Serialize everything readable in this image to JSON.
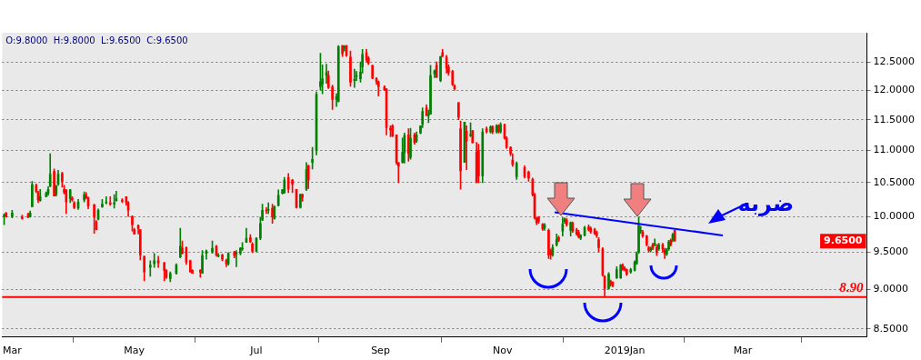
{
  "chart_data": {
    "type": "candlestick",
    "x": [
      "2018-02-25",
      "2018-02-26",
      "2018-03-01",
      "2018-03-06",
      "2018-03-09",
      "2018-03-10",
      "2018-03-11",
      "2018-03-13",
      "2018-03-14",
      "2018-03-15",
      "2018-03-18",
      "2018-03-19",
      "2018-03-20",
      "2018-03-22",
      "2018-03-23",
      "2018-03-24",
      "2018-03-26",
      "2018-03-27",
      "2018-03-28",
      "2018-03-30",
      "2018-03-31",
      "2018-04-01",
      "2018-04-03",
      "2018-04-06",
      "2018-04-07",
      "2018-04-08",
      "2018-04-11",
      "2018-04-12",
      "2018-04-13",
      "2018-04-15",
      "2018-04-17",
      "2018-04-19",
      "2018-04-21",
      "2018-04-22",
      "2018-04-25",
      "2018-04-27",
      "2018-04-28",
      "2018-04-30",
      "2018-05-01",
      "2018-05-03",
      "2018-05-04",
      "2018-05-06",
      "2018-05-09",
      "2018-05-11",
      "2018-05-13",
      "2018-05-16",
      "2018-05-17",
      "2018-05-19",
      "2018-05-22",
      "2018-05-24",
      "2018-05-25",
      "2018-05-27",
      "2018-05-29",
      "2018-05-30",
      "2018-06-03",
      "2018-06-04",
      "2018-06-06",
      "2018-06-09",
      "2018-06-11",
      "2018-06-12",
      "2018-06-14",
      "2018-06-16",
      "2018-06-17",
      "2018-06-20",
      "2018-06-21",
      "2018-06-23",
      "2018-06-24",
      "2018-06-26",
      "2018-06-28",
      "2018-06-29",
      "2018-07-01",
      "2018-07-03",
      "2018-07-04",
      "2018-07-06",
      "2018-07-07",
      "2018-07-09",
      "2018-07-10",
      "2018-07-12",
      "2018-07-14",
      "2018-07-15",
      "2018-07-17",
      "2018-07-19",
      "2018-07-21",
      "2018-07-23",
      "2018-07-24",
      "2018-07-26",
      "2018-07-27",
      "2018-07-29",
      "2018-07-31",
      "2018-08-02",
      "2018-08-03",
      "2018-08-05",
      "2018-08-06",
      "2018-08-08",
      "2018-08-10",
      "2018-08-11",
      "2018-08-13",
      "2018-08-14",
      "2018-08-15",
      "2018-08-17",
      "2018-08-19",
      "2018-08-20",
      "2018-08-22",
      "2018-08-23",
      "2018-08-25",
      "2018-08-26",
      "2018-08-28",
      "2018-08-30",
      "2018-08-31",
      "2018-09-03",
      "2018-09-04",
      "2018-09-06",
      "2018-09-07",
      "2018-09-09",
      "2018-09-10",
      "2018-09-12",
      "2018-09-13",
      "2018-09-15",
      "2018-09-16",
      "2018-09-18",
      "2018-09-19",
      "2018-09-21",
      "2018-09-22",
      "2018-09-24",
      "2018-09-25",
      "2018-09-26",
      "2018-09-28",
      "2018-09-29",
      "2018-10-01",
      "2018-10-02",
      "2018-10-04",
      "2018-10-05",
      "2018-10-07",
      "2018-10-08",
      "2018-10-10",
      "2018-10-11",
      "2018-10-13",
      "2018-10-14",
      "2018-10-16",
      "2018-10-17",
      "2018-10-19",
      "2018-10-20",
      "2018-10-22",
      "2018-10-24",
      "2018-10-26",
      "2018-10-27",
      "2018-10-29",
      "2018-10-30",
      "2018-10-31",
      "2018-11-02",
      "2018-11-03",
      "2018-11-05",
      "2018-11-06",
      "2018-11-08",
      "2018-11-12",
      "2018-11-14",
      "2018-11-16",
      "2018-11-17",
      "2018-11-18",
      "2018-11-19",
      "2018-11-21",
      "2018-11-22",
      "2018-11-24",
      "2018-11-25",
      "2018-11-26",
      "2018-11-28",
      "2018-11-29",
      "2018-12-01",
      "2018-12-02",
      "2018-12-03",
      "2018-12-05",
      "2018-12-06",
      "2018-12-08",
      "2018-12-09",
      "2018-12-10",
      "2018-12-12",
      "2018-12-14",
      "2018-12-15",
      "2018-12-17",
      "2018-12-18",
      "2018-12-19",
      "2018-12-21",
      "2018-12-22",
      "2018-12-24",
      "2018-12-25",
      "2018-12-26",
      "2018-12-28",
      "2018-12-30",
      "2018-12-31",
      "2019-01-01",
      "2019-01-02",
      "2019-01-04",
      "2019-01-06",
      "2019-01-07",
      "2019-01-08",
      "2019-01-09",
      "2019-01-10",
      "2019-01-12",
      "2019-01-13",
      "2019-01-14",
      "2019-01-15",
      "2019-01-16",
      "2019-01-17",
      "2019-01-18",
      "2019-01-20",
      "2019-01-21",
      "2019-01-22",
      "2019-01-23",
      "2019-01-24",
      "2019-01-25",
      "2019-01-26"
    ],
    "ohlc": [
      [
        10.0,
        10.04,
        9.88,
        10.02
      ],
      [
        10.05,
        10.06,
        9.99,
        10.0
      ],
      [
        10.0,
        10.09,
        9.98,
        10.05
      ],
      [
        9.99,
        10.02,
        9.96,
        9.97
      ],
      [
        10.03,
        10.05,
        9.98,
        9.99
      ],
      [
        10.0,
        10.08,
        9.99,
        10.05
      ],
      [
        10.14,
        10.52,
        10.14,
        10.47
      ],
      [
        10.46,
        10.48,
        10.35,
        10.37
      ],
      [
        10.35,
        10.37,
        10.2,
        10.24
      ],
      [
        10.23,
        10.4,
        10.22,
        10.29
      ],
      [
        10.29,
        10.36,
        10.29,
        10.34
      ],
      [
        10.34,
        10.44,
        10.31,
        10.4
      ],
      [
        10.44,
        10.95,
        10.44,
        10.63
      ],
      [
        10.67,
        10.71,
        10.3,
        10.3
      ],
      [
        10.33,
        10.46,
        10.3,
        10.45
      ],
      [
        10.48,
        10.69,
        10.46,
        10.63
      ],
      [
        10.64,
        10.66,
        10.43,
        10.52
      ],
      [
        10.4,
        10.46,
        10.33,
        10.35
      ],
      [
        10.39,
        10.39,
        10.04,
        10.21
      ],
      [
        10.26,
        10.4,
        10.2,
        10.39
      ],
      [
        10.27,
        10.29,
        10.22,
        10.24
      ],
      [
        10.2,
        10.22,
        10.11,
        10.13
      ],
      [
        10.12,
        10.25,
        10.1,
        10.21
      ],
      [
        10.24,
        10.36,
        10.21,
        10.32
      ],
      [
        10.31,
        10.35,
        10.26,
        10.27
      ],
      [
        10.28,
        10.28,
        10.11,
        10.15
      ],
      [
        10.17,
        10.18,
        9.76,
        9.99
      ],
      [
        9.92,
        9.94,
        9.81,
        9.81
      ],
      [
        9.96,
        10.11,
        9.95,
        10.09
      ],
      [
        10.14,
        10.25,
        10.13,
        10.18
      ],
      [
        10.2,
        10.29,
        10.18,
        10.21
      ],
      [
        10.2,
        10.29,
        10.16,
        10.18
      ],
      [
        10.18,
        10.32,
        10.12,
        10.2
      ],
      [
        10.23,
        10.37,
        10.22,
        10.26
      ],
      [
        10.24,
        10.26,
        10.2,
        10.22
      ],
      [
        10.29,
        10.29,
        10.16,
        10.2
      ],
      [
        10.2,
        10.22,
        10.0,
        10.09
      ],
      [
        10.0,
        10.01,
        9.79,
        9.88
      ],
      [
        9.81,
        9.83,
        9.75,
        9.75
      ],
      [
        9.87,
        9.88,
        9.75,
        9.83
      ],
      [
        9.81,
        9.81,
        9.39,
        9.46
      ],
      [
        9.44,
        9.44,
        9.11,
        9.23
      ],
      [
        9.29,
        9.38,
        9.17,
        9.32
      ],
      [
        9.34,
        9.48,
        9.29,
        9.38
      ],
      [
        9.38,
        9.44,
        9.29,
        9.35
      ],
      [
        9.35,
        9.36,
        9.11,
        9.25
      ],
      [
        9.25,
        9.26,
        9.14,
        9.16
      ],
      [
        9.14,
        9.23,
        9.1,
        9.21
      ],
      [
        9.21,
        9.34,
        9.2,
        9.32
      ],
      [
        9.43,
        9.83,
        9.42,
        9.58
      ],
      [
        9.55,
        9.65,
        9.47,
        9.48
      ],
      [
        9.56,
        9.57,
        9.33,
        9.36
      ],
      [
        9.38,
        9.39,
        9.23,
        9.23
      ],
      [
        9.25,
        9.26,
        9.21,
        9.21
      ],
      [
        9.25,
        9.26,
        9.16,
        9.23
      ],
      [
        9.21,
        9.52,
        9.21,
        9.45
      ],
      [
        9.48,
        9.53,
        9.4,
        9.51
      ],
      [
        9.5,
        9.65,
        9.48,
        9.55
      ],
      [
        9.58,
        9.59,
        9.44,
        9.46
      ],
      [
        9.44,
        9.48,
        9.43,
        9.45
      ],
      [
        9.46,
        9.47,
        9.38,
        9.4
      ],
      [
        9.39,
        9.4,
        9.3,
        9.34
      ],
      [
        9.34,
        9.49,
        9.32,
        9.48
      ],
      [
        9.5,
        9.51,
        9.42,
        9.45
      ],
      [
        9.47,
        9.52,
        9.3,
        9.49
      ],
      [
        9.48,
        9.56,
        9.46,
        9.55
      ],
      [
        9.54,
        9.63,
        9.52,
        9.55
      ],
      [
        9.63,
        9.83,
        9.63,
        9.69
      ],
      [
        9.7,
        9.74,
        9.63,
        9.64
      ],
      [
        9.61,
        9.63,
        9.49,
        9.51
      ],
      [
        9.51,
        9.7,
        9.5,
        9.69
      ],
      [
        9.69,
        9.99,
        9.67,
        9.9
      ],
      [
        9.95,
        10.18,
        9.94,
        10.09
      ],
      [
        10.09,
        10.13,
        10.04,
        10.08
      ],
      [
        10.09,
        10.2,
        10.04,
        10.1
      ],
      [
        10.12,
        10.18,
        9.9,
        10.0
      ],
      [
        9.97,
        10.15,
        9.96,
        10.15
      ],
      [
        10.16,
        10.39,
        10.15,
        10.31
      ],
      [
        10.34,
        10.4,
        10.33,
        10.39
      ],
      [
        10.35,
        10.58,
        10.34,
        10.54
      ],
      [
        10.58,
        10.64,
        10.35,
        10.4
      ],
      [
        10.54,
        10.55,
        10.35,
        10.48
      ],
      [
        10.4,
        10.4,
        10.12,
        10.13
      ],
      [
        10.13,
        10.33,
        10.12,
        10.32
      ],
      [
        10.32,
        10.33,
        10.22,
        10.28
      ],
      [
        10.4,
        10.81,
        10.38,
        10.7
      ],
      [
        10.76,
        10.77,
        10.41,
        10.54
      ],
      [
        10.81,
        11.05,
        10.71,
        10.86
      ],
      [
        11.0,
        11.97,
        10.93,
        11.93
      ],
      [
        12.06,
        12.66,
        12.0,
        12.15
      ],
      [
        12.11,
        12.45,
        11.94,
        12.2
      ],
      [
        12.26,
        12.46,
        12.12,
        12.31
      ],
      [
        12.26,
        12.34,
        12.03,
        12.05
      ],
      [
        12.06,
        12.09,
        11.67,
        11.84
      ],
      [
        11.84,
        11.94,
        11.72,
        11.89
      ],
      [
        11.81,
        12.8,
        11.8,
        12.78
      ],
      [
        12.8,
        12.8,
        12.6,
        12.65
      ],
      [
        12.76,
        12.8,
        12.7,
        12.78
      ],
      [
        12.8,
        12.8,
        12.6,
        12.62
      ],
      [
        12.59,
        12.7,
        12.07,
        12.14
      ],
      [
        12.17,
        12.37,
        12.05,
        12.19
      ],
      [
        12.24,
        12.33,
        12.17,
        12.26
      ],
      [
        12.2,
        12.5,
        12.14,
        12.32
      ],
      [
        12.41,
        12.73,
        12.3,
        12.64
      ],
      [
        12.67,
        12.73,
        12.5,
        12.54
      ],
      [
        12.57,
        12.6,
        12.45,
        12.48
      ],
      [
        12.44,
        12.44,
        12.2,
        12.21
      ],
      [
        12.2,
        12.22,
        12.1,
        12.15
      ],
      [
        12.15,
        12.16,
        11.9,
        12.06
      ],
      [
        12.06,
        12.08,
        12.0,
        12.0
      ],
      [
        12.02,
        12.03,
        11.25,
        11.37
      ],
      [
        11.36,
        11.4,
        11.22,
        11.33
      ],
      [
        11.4,
        11.42,
        11.22,
        11.23
      ],
      [
        11.25,
        11.25,
        10.78,
        10.81
      ],
      [
        10.81,
        10.81,
        10.5,
        10.75
      ],
      [
        10.81,
        11.2,
        10.8,
        10.97
      ],
      [
        10.97,
        11.28,
        10.8,
        11.24
      ],
      [
        11.25,
        11.35,
        10.83,
        10.95
      ],
      [
        10.89,
        11.36,
        10.86,
        11.2
      ],
      [
        11.25,
        11.28,
        11.1,
        11.13
      ],
      [
        11.15,
        11.3,
        11.13,
        11.25
      ],
      [
        11.28,
        11.4,
        11.27,
        11.4
      ],
      [
        11.42,
        11.7,
        11.37,
        11.64
      ],
      [
        11.7,
        11.75,
        11.57,
        11.57
      ],
      [
        11.57,
        11.66,
        11.45,
        11.59
      ],
      [
        11.59,
        12.44,
        11.59,
        12.26
      ],
      [
        12.29,
        12.36,
        12.22,
        12.34
      ],
      [
        12.44,
        12.5,
        12.22,
        12.23
      ],
      [
        12.17,
        12.6,
        12.15,
        12.6
      ],
      [
        12.67,
        12.73,
        12.6,
        12.6
      ],
      [
        12.59,
        12.62,
        12.3,
        12.39
      ],
      [
        12.41,
        12.45,
        12.26,
        12.31
      ],
      [
        12.33,
        12.35,
        12.08,
        12.1
      ],
      [
        12.08,
        12.1,
        12.0,
        12.03
      ],
      [
        11.79,
        11.79,
        11.5,
        11.54
      ],
      [
        11.35,
        11.48,
        10.4,
        10.68
      ],
      [
        10.81,
        11.46,
        10.81,
        11.46
      ],
      [
        11.31,
        11.4,
        10.7,
        11.15
      ],
      [
        11.24,
        11.45,
        11.22,
        11.26
      ],
      [
        11.32,
        11.32,
        11.12,
        11.12
      ],
      [
        10.97,
        11.13,
        10.5,
        10.5
      ],
      [
        11.0,
        11.1,
        10.5,
        10.6
      ],
      [
        10.6,
        11.35,
        10.5,
        11.3
      ],
      [
        11.35,
        11.38,
        11.28,
        11.3
      ],
      [
        11.3,
        11.4,
        11.28,
        11.38
      ],
      [
        11.38,
        11.4,
        11.27,
        11.3
      ],
      [
        11.3,
        11.42,
        11.28,
        11.4
      ],
      [
        11.4,
        11.42,
        11.28,
        11.3
      ],
      [
        11.3,
        11.45,
        11.28,
        11.42
      ],
      [
        11.42,
        11.43,
        11.18,
        11.2
      ],
      [
        11.2,
        11.22,
        11.03,
        11.05
      ],
      [
        11.05,
        11.06,
        10.92,
        10.95
      ],
      [
        10.85,
        10.95,
        10.75,
        10.78
      ],
      [
        10.59,
        10.82,
        10.55,
        10.8
      ],
      [
        10.73,
        10.76,
        10.57,
        10.59
      ],
      [
        10.66,
        10.68,
        10.52,
        10.57
      ],
      [
        10.55,
        10.57,
        10.3,
        10.32
      ],
      [
        10.32,
        10.34,
        9.96,
        9.98
      ],
      [
        9.97,
        9.99,
        9.88,
        9.91
      ],
      [
        9.99,
        10.0,
        9.9,
        9.93
      ],
      [
        9.89,
        9.9,
        9.8,
        9.82
      ],
      [
        9.83,
        9.9,
        9.8,
        9.88
      ],
      [
        9.8,
        9.82,
        9.41,
        9.46
      ],
      [
        9.52,
        9.54,
        9.4,
        9.46
      ],
      [
        9.46,
        9.6,
        9.44,
        9.56
      ],
      [
        9.6,
        9.75,
        9.58,
        9.67
      ],
      [
        9.7,
        9.72,
        9.64,
        9.66
      ],
      [
        9.79,
        9.98,
        9.72,
        9.89
      ],
      [
        9.93,
        9.98,
        9.9,
        9.96
      ],
      [
        9.95,
        9.97,
        9.86,
        9.88
      ],
      [
        9.8,
        9.92,
        9.72,
        9.91
      ],
      [
        9.9,
        9.92,
        9.77,
        9.79
      ],
      [
        9.81,
        9.83,
        9.73,
        9.75
      ],
      [
        9.77,
        9.8,
        9.69,
        9.71
      ],
      [
        9.69,
        9.74,
        9.67,
        9.73
      ],
      [
        9.73,
        9.86,
        9.72,
        9.84
      ],
      [
        9.85,
        9.88,
        9.79,
        9.81
      ],
      [
        9.83,
        9.85,
        9.76,
        9.78
      ],
      [
        9.81,
        9.83,
        9.74,
        9.76
      ],
      [
        9.77,
        9.79,
        9.7,
        9.73
      ],
      [
        9.67,
        9.7,
        9.5,
        9.56
      ],
      [
        9.54,
        9.56,
        9.17,
        9.19
      ],
      [
        9.17,
        9.18,
        8.91,
        9.01
      ],
      [
        9.01,
        9.22,
        9.0,
        9.2
      ],
      [
        9.1,
        9.12,
        9.04,
        9.07
      ],
      [
        9.09,
        9.1,
        9.03,
        9.05
      ],
      [
        9.15,
        9.3,
        9.14,
        9.26
      ],
      [
        9.15,
        9.33,
        9.14,
        9.32
      ],
      [
        9.32,
        9.34,
        9.25,
        9.27
      ],
      [
        9.28,
        9.3,
        9.24,
        9.26
      ],
      [
        9.26,
        9.27,
        9.18,
        9.2
      ],
      [
        9.23,
        9.28,
        9.21,
        9.26
      ],
      [
        9.25,
        9.38,
        9.24,
        9.36
      ],
      [
        9.34,
        9.5,
        9.33,
        9.48
      ],
      [
        9.5,
        9.99,
        9.48,
        9.87
      ],
      [
        9.79,
        9.86,
        9.76,
        9.8
      ],
      [
        9.78,
        9.8,
        9.7,
        9.72
      ],
      [
        9.72,
        9.73,
        9.58,
        9.6
      ],
      [
        9.56,
        9.58,
        9.5,
        9.52
      ],
      [
        9.52,
        9.57,
        9.5,
        9.55
      ],
      [
        9.6,
        9.62,
        9.53,
        9.55
      ],
      [
        9.6,
        9.68,
        9.58,
        9.62
      ],
      [
        9.56,
        9.6,
        9.45,
        9.49
      ],
      [
        9.54,
        9.62,
        9.52,
        9.6
      ],
      [
        9.6,
        9.62,
        9.5,
        9.54
      ],
      [
        9.53,
        9.55,
        9.41,
        9.47
      ],
      [
        9.47,
        9.55,
        9.45,
        9.53
      ],
      [
        9.54,
        9.66,
        9.52,
        9.64
      ],
      [
        9.66,
        9.68,
        9.58,
        9.6
      ],
      [
        9.66,
        9.76,
        9.64,
        9.74
      ],
      [
        9.8,
        9.8,
        9.65,
        9.65
      ]
    ],
    "colors": [
      "#008000",
      "#ff0000",
      "#008000",
      "#ff0000",
      "#ff0000",
      "#008000",
      "#008000",
      "#ff0000",
      "#ff0000",
      "#008000",
      "#008000",
      "#008000",
      "#008000",
      "#ff0000",
      "#008000",
      "#008000",
      "#ff0000",
      "#ff0000",
      "#ff0000",
      "#008000",
      "#ff0000",
      "#ff0000",
      "#008000",
      "#008000",
      "#ff0000",
      "#ff0000",
      "#ff0000",
      "#ff0000",
      "#008000",
      "#008000",
      "#008000",
      "#ff0000",
      "#008000",
      "#008000",
      "#ff0000",
      "#ff0000",
      "#ff0000",
      "#ff0000",
      "#ff0000",
      "#ff0000",
      "#ff0000",
      "#ff0000",
      "#008000",
      "#008000",
      "#ff0000",
      "#ff0000",
      "#ff0000",
      "#008000",
      "#008000",
      "#008000",
      "#ff0000",
      "#ff0000",
      "#ff0000",
      "#ff0000",
      "#ff0000",
      "#008000",
      "#008000",
      "#008000",
      "#ff0000",
      "#008000",
      "#ff0000",
      "#ff0000",
      "#008000",
      "#ff0000",
      "#008000",
      "#008000",
      "#008000",
      "#008000",
      "#ff0000",
      "#ff0000",
      "#008000",
      "#008000",
      "#008000",
      "#ff0000",
      "#008000",
      "#ff0000",
      "#008000",
      "#008000",
      "#008000",
      "#008000",
      "#ff0000",
      "#ff0000",
      "#ff0000",
      "#008000",
      "#ff0000",
      "#008000",
      "#ff0000",
      "#008000",
      "#008000",
      "#008000",
      "#008000",
      "#008000",
      "#ff0000",
      "#ff0000",
      "#008000",
      "#008000",
      "#ff0000",
      "#008000",
      "#ff0000",
      "#ff0000",
      "#008000",
      "#008000",
      "#008000",
      "#008000",
      "#ff0000",
      "#ff0000",
      "#ff0000",
      "#ff0000",
      "#ff0000",
      "#ff0000",
      "#ff0000",
      "#ff0000",
      "#ff0000",
      "#ff0000",
      "#ff0000",
      "#008000",
      "#008000",
      "#ff0000",
      "#008000",
      "#ff0000",
      "#008000",
      "#008000",
      "#008000",
      "#ff0000",
      "#008000",
      "#008000",
      "#008000",
      "#ff0000",
      "#008000",
      "#ff0000",
      "#ff0000",
      "#ff0000",
      "#ff0000",
      "#ff0000",
      "#ff0000",
      "#ff0000",
      "#008000",
      "#ff0000",
      "#008000",
      "#ff0000",
      "#ff0000",
      "#ff0000",
      "#008000",
      "#ff0000",
      "#008000",
      "#ff0000",
      "#008000",
      "#ff0000",
      "#008000",
      "#ff0000",
      "#ff0000",
      "#ff0000",
      "#ff0000",
      "#008000",
      "#ff0000",
      "#ff0000",
      "#ff0000",
      "#ff0000",
      "#ff0000",
      "#ff0000",
      "#ff0000",
      "#008000",
      "#ff0000",
      "#ff0000",
      "#008000",
      "#008000",
      "#ff0000",
      "#008000",
      "#008000",
      "#ff0000",
      "#008000",
      "#ff0000",
      "#ff0000",
      "#ff0000",
      "#008000",
      "#008000",
      "#ff0000",
      "#ff0000",
      "#ff0000",
      "#ff0000",
      "#ff0000",
      "#ff0000",
      "#ff0000",
      "#008000",
      "#ff0000",
      "#ff0000",
      "#008000",
      "#008000",
      "#ff0000",
      "#ff0000",
      "#ff0000",
      "#008000",
      "#008000",
      "#008000",
      "#008000",
      "#008000",
      "#ff0000",
      "#ff0000",
      "#ff0000",
      "#008000",
      "#ff0000",
      "#008000",
      "#ff0000",
      "#008000",
      "#ff0000",
      "#ff0000",
      "#008000",
      "#008000",
      "#ff0000",
      "#008000",
      "#ff0000"
    ],
    "series": [
      {
        "type": "line",
        "color": "#0000ff",
        "x": [
          "2018-11-27",
          "2019-02-19"
        ],
        "values": [
          10.06,
          9.73
        ]
      }
    ],
    "xlim": [
      "2018-02-24",
      "2019-05-02"
    ],
    "xticks": [
      {
        "value": "2018-03-01",
        "label": "Mar"
      },
      {
        "value": "2018-05-01",
        "label": "May"
      },
      {
        "value": "2018-07-01",
        "label": "Jul"
      },
      {
        "value": "2018-09-01",
        "label": "Sep"
      },
      {
        "value": "2018-11-01",
        "label": "Nov"
      },
      {
        "value": "2019-01-01",
        "label": "2019Jan"
      },
      {
        "value": "2019-03-01",
        "label": "Mar"
      }
    ],
    "ylim": [
      8.43,
      13.04
    ],
    "yticks": [
      {
        "value": 8.5,
        "label": "8.5000"
      },
      {
        "value": 9,
        "label": "9.0000"
      },
      {
        "value": 9.5,
        "label": "9.5000"
      },
      {
        "value": 10,
        "label": "10.0000"
      },
      {
        "value": 10.5,
        "label": "10.5000"
      },
      {
        "value": 11,
        "label": "11.0000"
      },
      {
        "value": 11.5,
        "label": "11.5000"
      },
      {
        "value": 12,
        "label": "12.0000"
      },
      {
        "value": 12.5,
        "label": "12.5000"
      }
    ],
    "log": true,
    "grid": "y",
    "ref_lines": [
      {
        "axis": "y",
        "value": 8.9,
        "label": "8.90",
        "color": "#ff0000"
      }
    ],
    "annotations": [
      "O:9.8000  H:9.8000  L:9.6500  C:9.6500",
      "ضربه",
      "9.6500"
    ]
  }
}
